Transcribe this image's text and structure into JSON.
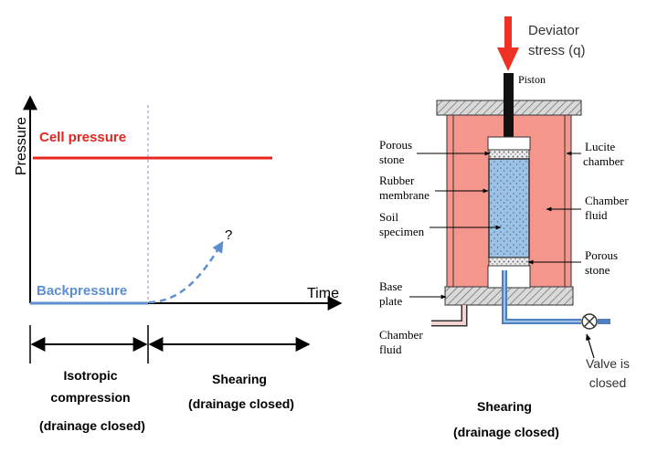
{
  "left_chart": {
    "y_axis_label": "Pressure",
    "x_axis_label": "Time",
    "cell_pressure_label": "Cell pressure",
    "backpressure_label": "Backpressure",
    "unknown_mark": "?",
    "phases": {
      "phase1_line1": "Isotropic",
      "phase1_line2": "compression",
      "phase1_line3": "(drainage closed)",
      "phase2_line1": "Shearing",
      "phase2_line2": "(drainage closed)"
    }
  },
  "apparatus": {
    "deviator_line1": "Deviator",
    "deviator_line2": "stress (q)",
    "piston": "Piston",
    "porous_stone_top_1": "Porous",
    "porous_stone_top_2": "stone",
    "rubber_membrane_1": "Rubber",
    "rubber_membrane_2": "membrane",
    "soil_specimen_1": "Soil",
    "soil_specimen_2": "specimen",
    "base_plate_1": "Base",
    "base_plate_2": "plate",
    "chamber_fluid_bottom_1": "Chamber",
    "chamber_fluid_bottom_2": "fluid",
    "lucite_chamber_1": "Lucite",
    "lucite_chamber_2": "chamber",
    "chamber_fluid_right_1": "Chamber",
    "chamber_fluid_right_2": "fluid",
    "porous_stone_bottom_1": "Porous",
    "porous_stone_bottom_2": "stone",
    "valve_line1": "Valve is",
    "valve_line2": "closed",
    "caption_line1": "Shearing",
    "caption_line2": "(drainage closed)"
  },
  "colors": {
    "cell_pressure": "#e8261f",
    "backpressure": "#5b8fd0",
    "chamber_fluid": "#f4968c",
    "specimen": "#9cc3e6",
    "drain_pipe": "#4f7fbf",
    "arrow": "#ee3124"
  }
}
